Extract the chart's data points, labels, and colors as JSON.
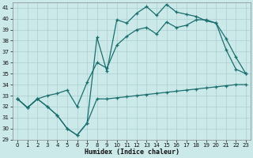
{
  "xlabel": "Humidex (Indice chaleur)",
  "ylabel": "",
  "bg_color": "#cce9ea",
  "grid_color": "#aacfcf",
  "line_color": "#1a6e6e",
  "xlim": [
    -0.5,
    23.5
  ],
  "ylim": [
    29,
    41.5
  ],
  "yticks": [
    29,
    30,
    31,
    32,
    33,
    34,
    35,
    36,
    37,
    38,
    39,
    40,
    41
  ],
  "xticks": [
    0,
    1,
    2,
    3,
    4,
    5,
    6,
    7,
    8,
    9,
    10,
    11,
    12,
    13,
    14,
    15,
    16,
    17,
    18,
    19,
    20,
    21,
    22,
    23
  ],
  "line1_x": [
    0,
    1,
    2,
    3,
    4,
    5,
    6,
    7,
    8,
    9,
    10,
    11,
    12,
    13,
    14,
    15,
    16,
    17,
    18,
    19,
    20,
    21,
    22,
    23
  ],
  "line1_y": [
    32.7,
    31.9,
    32.7,
    32.0,
    31.2,
    30.0,
    29.4,
    30.5,
    32.7,
    32.7,
    32.8,
    32.9,
    33.0,
    33.1,
    33.2,
    33.3,
    33.4,
    33.5,
    33.6,
    33.7,
    33.8,
    33.9,
    34.0,
    34.0
  ],
  "line2_x": [
    0,
    1,
    2,
    3,
    4,
    5,
    6,
    7,
    8,
    9,
    10,
    11,
    12,
    13,
    14,
    15,
    16,
    17,
    18,
    19,
    20,
    21,
    22,
    23
  ],
  "line2_y": [
    32.7,
    31.9,
    32.7,
    32.0,
    31.2,
    30.0,
    29.4,
    30.5,
    38.3,
    35.2,
    39.9,
    39.6,
    40.5,
    41.1,
    40.3,
    41.3,
    40.6,
    40.4,
    40.2,
    39.8,
    39.6,
    37.2,
    35.4,
    35.0
  ],
  "line3_x": [
    0,
    1,
    2,
    3,
    4,
    5,
    6,
    7,
    8,
    9,
    10,
    11,
    12,
    13,
    14,
    15,
    16,
    17,
    18,
    19,
    20,
    21,
    22,
    23
  ],
  "line3_y": [
    32.7,
    31.9,
    32.7,
    33.0,
    33.2,
    33.5,
    32.0,
    34.2,
    36.0,
    35.5,
    37.6,
    38.4,
    39.0,
    39.2,
    38.6,
    39.7,
    39.2,
    39.4,
    39.9,
    39.9,
    39.6,
    38.2,
    36.5,
    35.0
  ]
}
